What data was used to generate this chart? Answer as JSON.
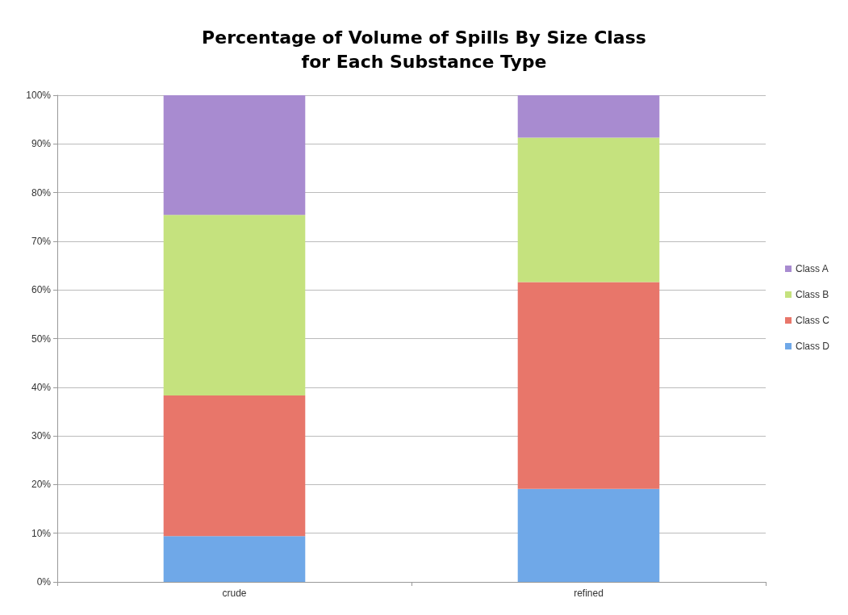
{
  "chart_data": {
    "type": "bar",
    "title": "Percentage of Volume of Spills By Size Class\nfor Each Substance Type",
    "categories": [
      "crude",
      "refined"
    ],
    "stacked": true,
    "series": [
      {
        "name": "Class D",
        "color": "#6fa8e8",
        "values": [
          9.4,
          19.1
        ]
      },
      {
        "name": "Class C",
        "color": "#e8766a",
        "values": [
          28.9,
          42.5
        ]
      },
      {
        "name": "Class B",
        "color": "#c5e27e",
        "values": [
          37.1,
          29.7
        ]
      },
      {
        "name": "Class A",
        "color": "#a88bd0",
        "values": [
          24.6,
          8.7
        ]
      }
    ],
    "ylim": [
      0,
      100
    ],
    "yticks": [
      {
        "value": 0,
        "label": "0%"
      },
      {
        "value": 10,
        "label": "10%"
      },
      {
        "value": 20,
        "label": "20%"
      },
      {
        "value": 30,
        "label": "30%"
      },
      {
        "value": 40,
        "label": "40%"
      },
      {
        "value": 50,
        "label": "50%"
      },
      {
        "value": 60,
        "label": "60%"
      },
      {
        "value": 70,
        "label": "70%"
      },
      {
        "value": 80,
        "label": "80%"
      },
      {
        "value": 90,
        "label": "90%"
      },
      {
        "value": 100,
        "label": "100%"
      }
    ],
    "grid": "y",
    "legend": "right"
  }
}
